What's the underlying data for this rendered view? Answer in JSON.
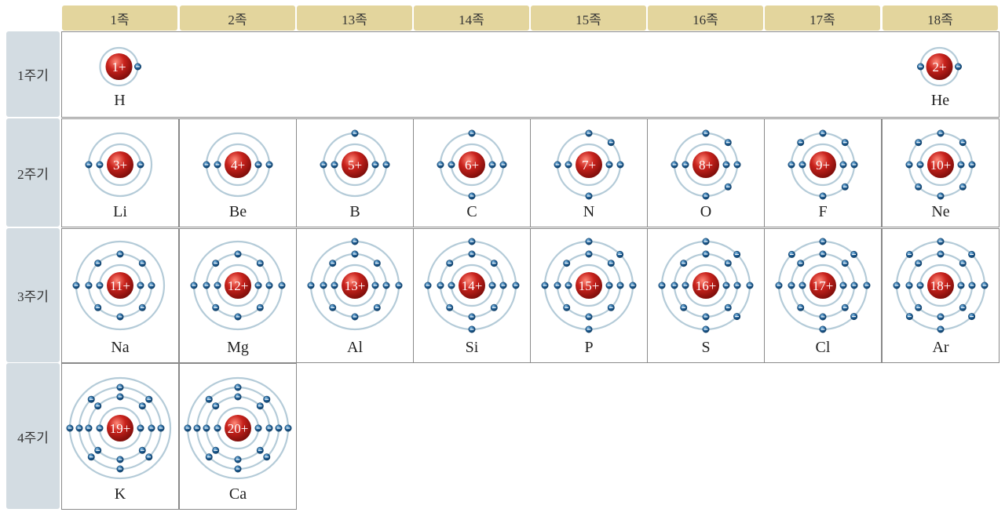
{
  "groups": [
    "1족",
    "2족",
    "13족",
    "14족",
    "15족",
    "16족",
    "17족",
    "18족"
  ],
  "periods": [
    "1주기",
    "2주기",
    "3주기",
    "4주기"
  ],
  "elements": [
    {
      "symbol": "H",
      "charge": "1+",
      "period": 1,
      "col": 0,
      "shells": [
        1
      ]
    },
    {
      "symbol": "He",
      "charge": "2+",
      "period": 1,
      "col": 7,
      "shells": [
        2
      ]
    },
    {
      "symbol": "Li",
      "charge": "3+",
      "period": 2,
      "col": 0,
      "shells": [
        2,
        1
      ]
    },
    {
      "symbol": "Be",
      "charge": "4+",
      "period": 2,
      "col": 1,
      "shells": [
        2,
        2
      ]
    },
    {
      "symbol": "B",
      "charge": "5+",
      "period": 2,
      "col": 2,
      "shells": [
        2,
        3
      ]
    },
    {
      "symbol": "C",
      "charge": "6+",
      "period": 2,
      "col": 3,
      "shells": [
        2,
        4
      ]
    },
    {
      "symbol": "N",
      "charge": "7+",
      "period": 2,
      "col": 4,
      "shells": [
        2,
        5
      ]
    },
    {
      "symbol": "O",
      "charge": "8+",
      "period": 2,
      "col": 5,
      "shells": [
        2,
        6
      ]
    },
    {
      "symbol": "F",
      "charge": "9+",
      "period": 2,
      "col": 6,
      "shells": [
        2,
        7
      ]
    },
    {
      "symbol": "Ne",
      "charge": "10+",
      "period": 2,
      "col": 7,
      "shells": [
        2,
        8
      ]
    },
    {
      "symbol": "Na",
      "charge": "11+",
      "period": 3,
      "col": 0,
      "shells": [
        2,
        8,
        1
      ]
    },
    {
      "symbol": "Mg",
      "charge": "12+",
      "period": 3,
      "col": 1,
      "shells": [
        2,
        8,
        2
      ]
    },
    {
      "symbol": "Al",
      "charge": "13+",
      "period": 3,
      "col": 2,
      "shells": [
        2,
        8,
        3
      ]
    },
    {
      "symbol": "Si",
      "charge": "14+",
      "period": 3,
      "col": 3,
      "shells": [
        2,
        8,
        4
      ]
    },
    {
      "symbol": "P",
      "charge": "15+",
      "period": 3,
      "col": 4,
      "shells": [
        2,
        8,
        5
      ]
    },
    {
      "symbol": "S",
      "charge": "16+",
      "period": 3,
      "col": 5,
      "shells": [
        2,
        8,
        6
      ]
    },
    {
      "symbol": "Cl",
      "charge": "17+",
      "period": 3,
      "col": 6,
      "shells": [
        2,
        8,
        7
      ]
    },
    {
      "symbol": "Ar",
      "charge": "18+",
      "period": 3,
      "col": 7,
      "shells": [
        2,
        8,
        8
      ]
    },
    {
      "symbol": "K",
      "charge": "19+",
      "period": 4,
      "col": 0,
      "shells": [
        2,
        8,
        8,
        1
      ]
    },
    {
      "symbol": "Ca",
      "charge": "20+",
      "period": 4,
      "col": 1,
      "shells": [
        2,
        8,
        8,
        2
      ]
    }
  ],
  "colors": {
    "group_header": "#e3d59d",
    "period_header": "#d3dce2",
    "nucleus": "#c8221c",
    "electron": "#1f5f96",
    "orbit": "#b4cbd8"
  }
}
